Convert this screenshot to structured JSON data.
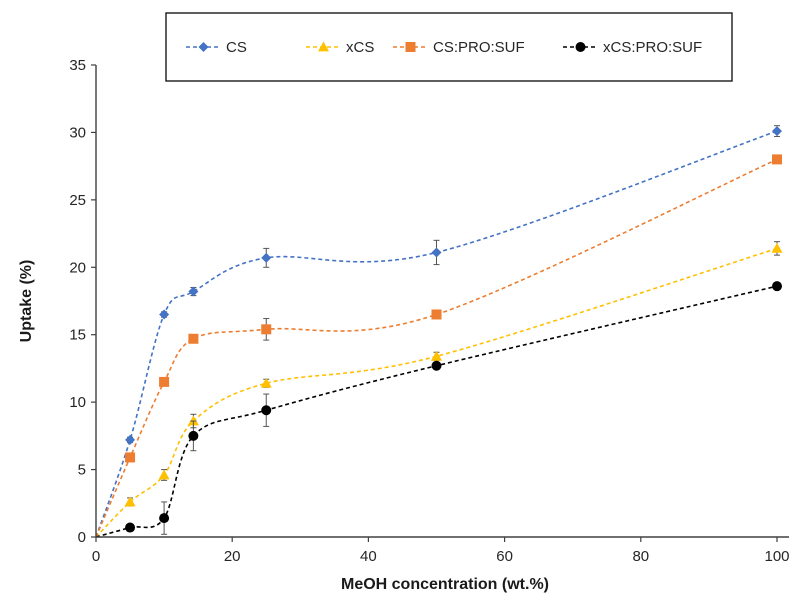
{
  "chart_data": {
    "type": "line",
    "title": "",
    "xlabel": "MeOH concentration (wt.%)",
    "ylabel": "Uptake  (%)",
    "xlim": [
      0,
      100
    ],
    "ylim": [
      0,
      35
    ],
    "x_ticks": [
      0,
      20,
      40,
      60,
      80,
      100
    ],
    "y_ticks": [
      0,
      5,
      10,
      15,
      20,
      25,
      30,
      35
    ],
    "grid": false,
    "legend_position": "top",
    "series": [
      {
        "name": "CS",
        "color": "#4472C4",
        "marker": "diamond",
        "points": [
          {
            "x": 0,
            "y": 0,
            "err": 0
          },
          {
            "x": 5,
            "y": 7.2,
            "err": 0.2
          },
          {
            "x": 10,
            "y": 16.5,
            "err": 0.2
          },
          {
            "x": 14.3,
            "y": 18.2,
            "err": 0.3
          },
          {
            "x": 25,
            "y": 20.7,
            "err": 0.7
          },
          {
            "x": 50,
            "y": 21.1,
            "err": 0.9
          },
          {
            "x": 100,
            "y": 30.1,
            "err": 0.4
          }
        ]
      },
      {
        "name": "xCS",
        "color": "#FFC000",
        "marker": "triangle",
        "points": [
          {
            "x": 0,
            "y": 0,
            "err": 0
          },
          {
            "x": 5,
            "y": 2.6,
            "err": 0.3
          },
          {
            "x": 10,
            "y": 4.6,
            "err": 0.4
          },
          {
            "x": 14.3,
            "y": 8.6,
            "err": 0.5
          },
          {
            "x": 25,
            "y": 11.4,
            "err": 0.3
          },
          {
            "x": 50,
            "y": 13.4,
            "err": 0.3
          },
          {
            "x": 100,
            "y": 21.4,
            "err": 0.5
          }
        ]
      },
      {
        "name": "CS:PRO:SUF",
        "color": "#ED7D31",
        "marker": "square",
        "points": [
          {
            "x": 0,
            "y": 0,
            "err": 0
          },
          {
            "x": 5,
            "y": 5.9,
            "err": 0
          },
          {
            "x": 10,
            "y": 11.5,
            "err": 0
          },
          {
            "x": 14.3,
            "y": 14.7,
            "err": 0.2
          },
          {
            "x": 25,
            "y": 15.4,
            "err": 0.8
          },
          {
            "x": 50,
            "y": 16.5,
            "err": 0.3
          },
          {
            "x": 100,
            "y": 28.0,
            "err": 0
          }
        ]
      },
      {
        "name": "xCS:PRO:SUF",
        "color": "#000000",
        "marker": "circle",
        "points": [
          {
            "x": 0,
            "y": 0,
            "err": 0
          },
          {
            "x": 5,
            "y": 0.7,
            "err": 0
          },
          {
            "x": 10,
            "y": 1.4,
            "err": 1.2
          },
          {
            "x": 14.3,
            "y": 7.5,
            "err": 1.1
          },
          {
            "x": 25,
            "y": 9.4,
            "err": 1.2
          },
          {
            "x": 50,
            "y": 12.7,
            "err": 0
          },
          {
            "x": 100,
            "y": 18.6,
            "err": 0
          }
        ]
      }
    ]
  }
}
